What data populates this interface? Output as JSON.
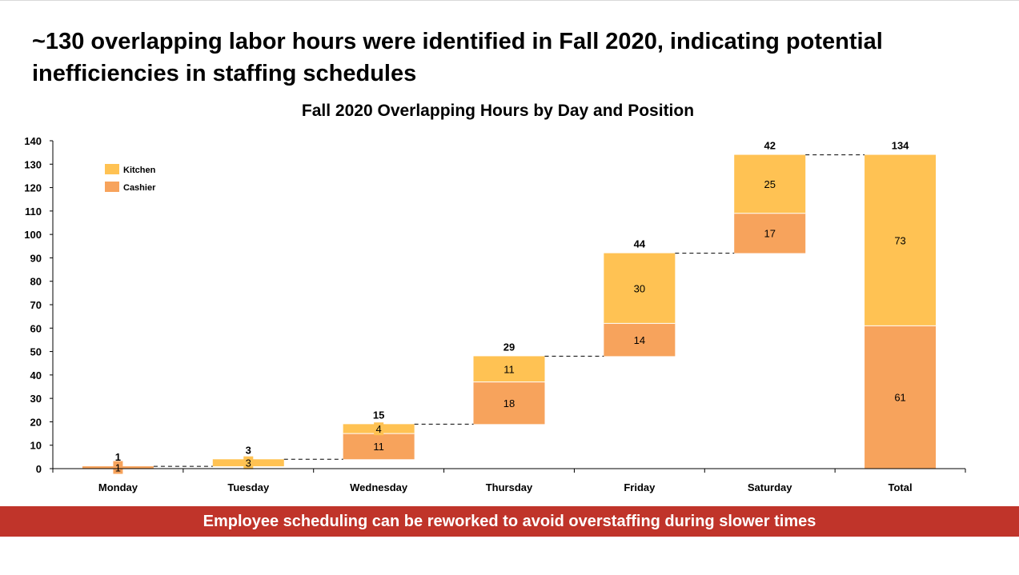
{
  "slide": {
    "headline": "~130 overlapping labor hours were identified in Fall 2020, indicating potential inefficiencies in staffing schedules",
    "banner_text": "Employee scheduling can be reworked to avoid overstaffing during slower times",
    "banner_color": "#c0342a"
  },
  "chart_data": {
    "type": "bar",
    "subtype": "stacked-waterfall",
    "title": "Fall 2020 Overlapping Hours by Day and Position",
    "xlabel": "",
    "ylabel": "",
    "categories": [
      "Monday",
      "Tuesday",
      "Wednesday",
      "Thursday",
      "Friday",
      "Saturday",
      "Total"
    ],
    "series": [
      {
        "name": "Cashier",
        "color": "#f7a35c",
        "values": [
          1,
          0,
          11,
          18,
          14,
          17,
          61
        ],
        "labels": [
          "1",
          "",
          "11",
          "18",
          "14",
          "17",
          "61"
        ]
      },
      {
        "name": "Kitchen",
        "color": "#ffc253",
        "values": [
          0,
          3,
          4,
          11,
          30,
          25,
          73
        ],
        "labels": [
          "",
          "3",
          "4",
          "11",
          "30",
          "25",
          "73"
        ]
      }
    ],
    "totals": [
      1,
      3,
      15,
      29,
      44,
      42,
      134
    ],
    "total_labels": [
      "1",
      "3",
      "15",
      "29",
      "44",
      "42",
      "134"
    ],
    "cumulative_base": true,
    "final_bar_total": true,
    "ylim": [
      0,
      140
    ],
    "yticks": [
      "0",
      "10",
      "20",
      "30",
      "40",
      "50",
      "60",
      "70",
      "80",
      "90",
      "100",
      "110",
      "120",
      "130",
      "140"
    ],
    "grid": false,
    "connector_lines": true,
    "legend": {
      "placement": "top-left",
      "order": [
        "Kitchen",
        "Cashier"
      ]
    }
  }
}
